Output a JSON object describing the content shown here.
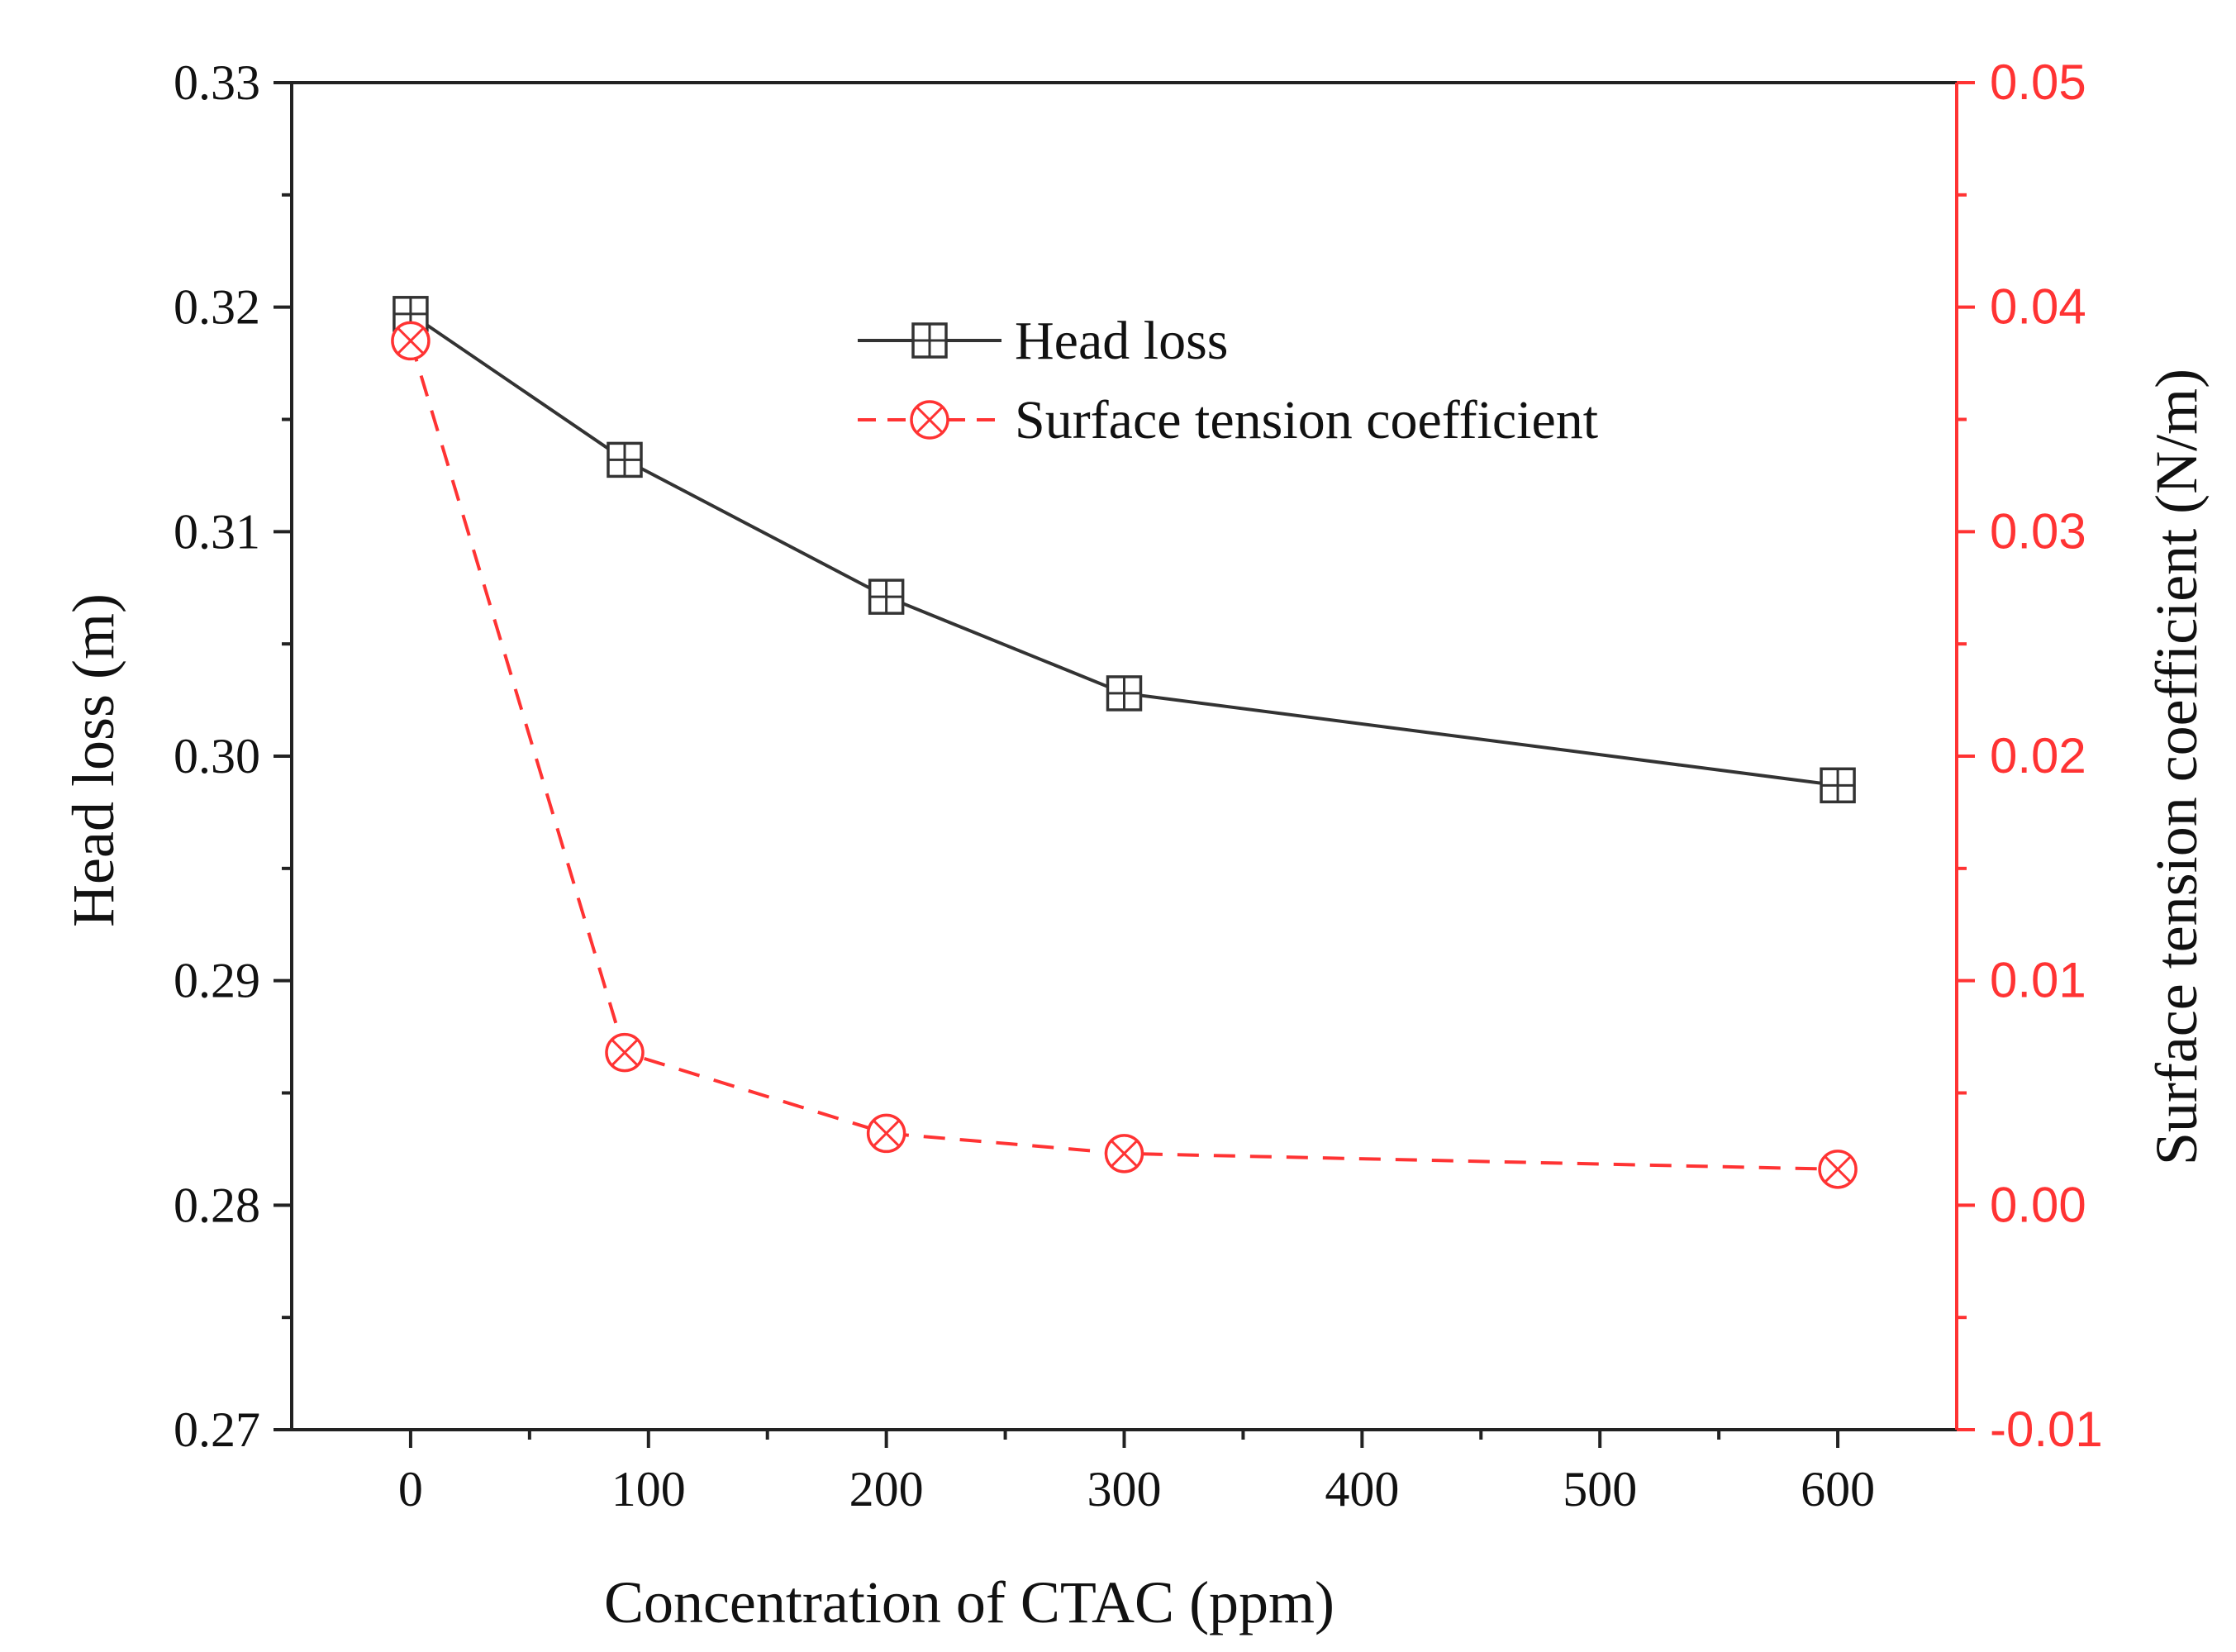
{
  "chart_data": {
    "type": "line",
    "title": "",
    "xlabel": "Concentration of CTAC (ppm)",
    "ylabel": "Head loss (m)",
    "y2label": "Surface tension coefficient (N/m)",
    "xlim": [
      -50,
      650
    ],
    "ylim": [
      0.27,
      0.33
    ],
    "y2lim": [
      -0.01,
      0.05
    ],
    "x_ticks": [
      0,
      100,
      200,
      300,
      400,
      500,
      600
    ],
    "x_tick_labels": [
      "0",
      "100",
      "200",
      "300",
      "400",
      "500",
      "600"
    ],
    "y_ticks": [
      0.27,
      0.28,
      0.29,
      0.3,
      0.31,
      0.32,
      0.33
    ],
    "y_tick_labels": [
      "0.27",
      "0.28",
      "0.29",
      "0.30",
      "0.31",
      "0.32",
      "0.33"
    ],
    "y2_ticks": [
      -0.01,
      0.0,
      0.01,
      0.02,
      0.03,
      0.04,
      0.05
    ],
    "y2_tick_labels": [
      "-0.01",
      "0.00",
      "0.01",
      "0.02",
      "0.03",
      "0.04",
      "0.05"
    ],
    "grid": false,
    "legend_position": "top-center",
    "series": [
      {
        "name": "Head loss",
        "axis": "left",
        "color": "#333333",
        "line_style": "solid",
        "marker": "boxed-plus",
        "x": [
          0,
          90,
          200,
          300,
          600
        ],
        "values": [
          0.3197,
          0.3132,
          0.3071,
          0.3028,
          0.2987
        ]
      },
      {
        "name": "Surface tension coefficient",
        "axis": "right",
        "color": "#ff3333",
        "line_style": "dashed",
        "marker": "circled-x",
        "x": [
          0,
          90,
          200,
          300,
          600
        ],
        "values": [
          0.0385,
          0.0068,
          0.0032,
          0.0023,
          0.0016
        ]
      }
    ]
  }
}
